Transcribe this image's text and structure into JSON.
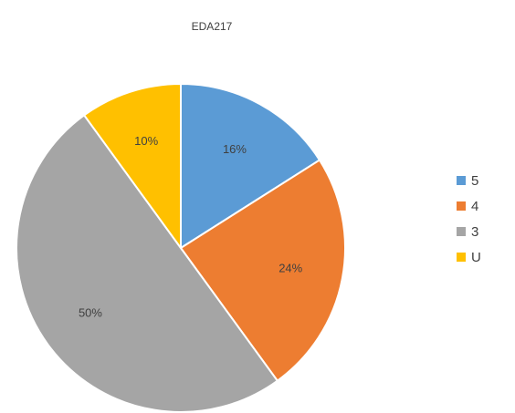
{
  "chart_data": {
    "type": "pie",
    "title": "EDA217",
    "categories": [
      "5",
      "4",
      "3",
      "U"
    ],
    "values": [
      16,
      24,
      50,
      10
    ],
    "value_labels": [
      "16%",
      "24%",
      "50%",
      "10%"
    ],
    "colors": [
      "#5b9bd5",
      "#ed7d31",
      "#a5a5a5",
      "#ffc000"
    ],
    "legend": "right"
  }
}
